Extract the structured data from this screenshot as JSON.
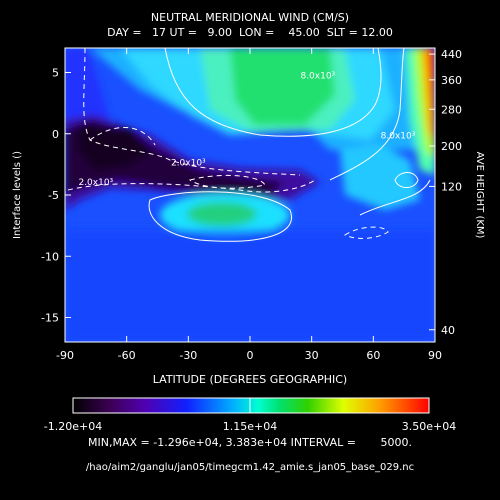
{
  "chart_data": {
    "type": "heatmap",
    "title": "NEUTRAL MERIDIONAL WIND (CM/S)",
    "subtitle": "DAY =   17 UT =   9.00  LON =    45.00  SLT = 12.00",
    "xlabel": "LATITUDE (DEGREES GEOGRAPHIC)",
    "ylabel": "Interface levels ()",
    "ylabel_right": "AVE HEIGHT (KM)",
    "xlim": [
      -90,
      90
    ],
    "ylim": [
      -17,
      7
    ],
    "x_ticks": [
      "-90",
      "-60",
      "-30",
      "0",
      "30",
      "60",
      "90"
    ],
    "y_ticks": [
      "5",
      "0",
      "-5",
      "-10",
      "-15"
    ],
    "right_ticks": [
      {
        "label": "440",
        "level": 6.5
      },
      {
        "label": "360",
        "level": 4.4
      },
      {
        "label": "280",
        "level": 2.0
      },
      {
        "label": "200",
        "level": -1.0
      },
      {
        "label": "120",
        "level": -4.3
      },
      {
        "label": "40",
        "level": -16.0
      }
    ],
    "contour_labels": [
      {
        "text": "2.0x10³",
        "x": -30,
        "y": -2.6
      },
      {
        "text": "2.0x10³",
        "x": -75,
        "y": -4.2
      },
      {
        "text": "8.0x10³",
        "x": 33,
        "y": 4.5
      },
      {
        "text": "8.0x10³",
        "x": 72,
        "y": -0.4
      }
    ],
    "colorbar": {
      "min_label": "-1.20e+04",
      "mid_label": "1.15e+04",
      "max_label": "3.50e+04"
    },
    "stats": "MIN,MAX = -1.296e+04, 3.383e+04 INTERVAL =       5000.",
    "file_path": "/hao/aim2/ganglu/jan05/timegcm1.42_amie.s_jan05_base_029.nc"
  }
}
